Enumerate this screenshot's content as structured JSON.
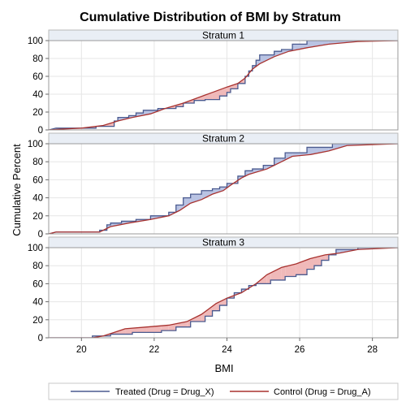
{
  "chart_data": {
    "type": "line",
    "title": "Cumulative Distribution of BMI by Stratum",
    "xlabel": "BMI",
    "ylabel": "Cumulative Percent",
    "xlim": [
      19.1,
      28.7
    ],
    "ylim": [
      0,
      100
    ],
    "xticks": [
      20,
      22,
      24,
      26,
      28
    ],
    "yticks": [
      0,
      20,
      40,
      60,
      80,
      100
    ],
    "grid": true,
    "legend_position": "bottom",
    "colors": {
      "treated": "#4a5a8f",
      "control": "#a8322f",
      "fill_treated_above": "#b9c3e3",
      "fill_control_above": "#f0b9b9",
      "strip_bg": "#e9eef5",
      "grid": "#e6e6e6"
    },
    "legend": {
      "treated": "Treated (Drug = Drug_X)",
      "control": "Control (Drug = Drug_A)"
    },
    "panels": [
      {
        "label": "Stratum 1",
        "series": [
          {
            "name": "Treated (Drug = Drug_X)",
            "key": "treated",
            "points": [
              [
                19.1,
                0
              ],
              [
                19.3,
                2
              ],
              [
                20.4,
                2
              ],
              [
                20.4,
                4
              ],
              [
                20.9,
                4
              ],
              [
                20.9,
                10
              ],
              [
                21.0,
                10
              ],
              [
                21.0,
                14
              ],
              [
                21.3,
                14
              ],
              [
                21.3,
                16
              ],
              [
                21.5,
                16
              ],
              [
                21.5,
                19
              ],
              [
                21.7,
                19
              ],
              [
                21.7,
                22
              ],
              [
                22.1,
                22
              ],
              [
                22.1,
                24
              ],
              [
                22.6,
                24
              ],
              [
                22.6,
                26
              ],
              [
                22.8,
                26
              ],
              [
                22.8,
                30
              ],
              [
                23.1,
                30
              ],
              [
                23.1,
                33
              ],
              [
                23.4,
                33
              ],
              [
                23.4,
                34
              ],
              [
                23.8,
                34
              ],
              [
                23.8,
                38
              ],
              [
                24.0,
                38
              ],
              [
                24.0,
                42
              ],
              [
                24.1,
                42
              ],
              [
                24.1,
                46
              ],
              [
                24.3,
                46
              ],
              [
                24.3,
                52
              ],
              [
                24.5,
                52
              ],
              [
                24.5,
                60
              ],
              [
                24.6,
                60
              ],
              [
                24.6,
                66
              ],
              [
                24.7,
                66
              ],
              [
                24.7,
                72
              ],
              [
                24.8,
                72
              ],
              [
                24.8,
                78
              ],
              [
                24.9,
                78
              ],
              [
                24.9,
                84
              ],
              [
                25.3,
                84
              ],
              [
                25.3,
                88
              ],
              [
                25.5,
                88
              ],
              [
                25.5,
                90
              ],
              [
                25.8,
                90
              ],
              [
                25.8,
                96
              ],
              [
                26.2,
                96
              ],
              [
                26.2,
                100
              ],
              [
                28.7,
                100
              ]
            ]
          },
          {
            "name": "Control (Drug = Drug_A)",
            "key": "control",
            "points": [
              [
                19.1,
                0
              ],
              [
                19.5,
                1
              ],
              [
                20.0,
                2
              ],
              [
                20.6,
                5
              ],
              [
                21.0,
                10
              ],
              [
                21.4,
                14
              ],
              [
                21.9,
                18
              ],
              [
                22.3,
                24
              ],
              [
                22.8,
                30
              ],
              [
                23.2,
                36
              ],
              [
                23.6,
                42
              ],
              [
                24.0,
                48
              ],
              [
                24.3,
                52
              ],
              [
                24.5,
                58
              ],
              [
                24.7,
                68
              ],
              [
                24.9,
                74
              ],
              [
                25.3,
                82
              ],
              [
                25.7,
                88
              ],
              [
                26.2,
                92
              ],
              [
                26.8,
                96
              ],
              [
                27.6,
                99
              ],
              [
                28.7,
                100
              ]
            ]
          }
        ]
      },
      {
        "label": "Stratum 2",
        "series": [
          {
            "name": "Treated (Drug = Drug_X)",
            "key": "treated",
            "points": [
              [
                19.1,
                0
              ],
              [
                19.3,
                2
              ],
              [
                20.5,
                2
              ],
              [
                20.5,
                4
              ],
              [
                20.7,
                4
              ],
              [
                20.7,
                10
              ],
              [
                20.8,
                10
              ],
              [
                20.8,
                12
              ],
              [
                21.1,
                12
              ],
              [
                21.1,
                14
              ],
              [
                21.5,
                14
              ],
              [
                21.5,
                16
              ],
              [
                21.9,
                16
              ],
              [
                21.9,
                20
              ],
              [
                22.4,
                20
              ],
              [
                22.4,
                24
              ],
              [
                22.6,
                24
              ],
              [
                22.6,
                32
              ],
              [
                22.8,
                32
              ],
              [
                22.8,
                40
              ],
              [
                23.0,
                40
              ],
              [
                23.0,
                44
              ],
              [
                23.3,
                44
              ],
              [
                23.3,
                48
              ],
              [
                23.6,
                48
              ],
              [
                23.6,
                50
              ],
              [
                23.8,
                50
              ],
              [
                23.8,
                52
              ],
              [
                24.0,
                52
              ],
              [
                24.0,
                56
              ],
              [
                24.3,
                56
              ],
              [
                24.3,
                64
              ],
              [
                24.5,
                64
              ],
              [
                24.5,
                70
              ],
              [
                24.7,
                70
              ],
              [
                24.7,
                72
              ],
              [
                25.0,
                72
              ],
              [
                25.0,
                76
              ],
              [
                25.3,
                76
              ],
              [
                25.3,
                84
              ],
              [
                25.6,
                84
              ],
              [
                25.6,
                90
              ],
              [
                26.2,
                90
              ],
              [
                26.2,
                96
              ],
              [
                26.9,
                96
              ],
              [
                26.9,
                100
              ],
              [
                28.7,
                100
              ]
            ]
          },
          {
            "name": "Control (Drug = Drug_A)",
            "key": "control",
            "points": [
              [
                19.1,
                0
              ],
              [
                19.3,
                2
              ],
              [
                20.5,
                2
              ],
              [
                20.6,
                4
              ],
              [
                20.8,
                8
              ],
              [
                21.3,
                12
              ],
              [
                21.9,
                16
              ],
              [
                22.4,
                20
              ],
              [
                22.7,
                26
              ],
              [
                23.0,
                34
              ],
              [
                23.3,
                38
              ],
              [
                23.6,
                44
              ],
              [
                23.9,
                48
              ],
              [
                24.1,
                54
              ],
              [
                24.4,
                62
              ],
              [
                24.6,
                66
              ],
              [
                25.1,
                72
              ],
              [
                25.5,
                80
              ],
              [
                25.8,
                86
              ],
              [
                26.3,
                88
              ],
              [
                26.8,
                92
              ],
              [
                27.3,
                98
              ],
              [
                28.7,
                100
              ]
            ]
          }
        ]
      },
      {
        "label": "Stratum 3",
        "series": [
          {
            "name": "Treated (Drug = Drug_X)",
            "key": "treated",
            "points": [
              [
                19.1,
                0
              ],
              [
                20.3,
                0
              ],
              [
                20.3,
                2
              ],
              [
                20.8,
                2
              ],
              [
                20.8,
                4
              ],
              [
                21.4,
                4
              ],
              [
                21.4,
                6
              ],
              [
                22.2,
                6
              ],
              [
                22.2,
                8
              ],
              [
                22.6,
                8
              ],
              [
                22.6,
                12
              ],
              [
                23.0,
                12
              ],
              [
                23.0,
                18
              ],
              [
                23.4,
                18
              ],
              [
                23.4,
                24
              ],
              [
                23.6,
                24
              ],
              [
                23.6,
                30
              ],
              [
                23.8,
                30
              ],
              [
                23.8,
                36
              ],
              [
                24.0,
                36
              ],
              [
                24.0,
                44
              ],
              [
                24.2,
                44
              ],
              [
                24.2,
                50
              ],
              [
                24.4,
                50
              ],
              [
                24.4,
                54
              ],
              [
                24.6,
                54
              ],
              [
                24.6,
                58
              ],
              [
                24.8,
                58
              ],
              [
                24.8,
                60
              ],
              [
                25.2,
                60
              ],
              [
                25.2,
                64
              ],
              [
                25.6,
                64
              ],
              [
                25.6,
                68
              ],
              [
                25.9,
                68
              ],
              [
                25.9,
                70
              ],
              [
                26.2,
                70
              ],
              [
                26.2,
                76
              ],
              [
                26.4,
                76
              ],
              [
                26.4,
                80
              ],
              [
                26.6,
                80
              ],
              [
                26.6,
                86
              ],
              [
                26.8,
                86
              ],
              [
                26.8,
                92
              ],
              [
                27.0,
                92
              ],
              [
                27.0,
                98
              ],
              [
                27.6,
                98
              ],
              [
                27.6,
                100
              ],
              [
                28.7,
                100
              ]
            ]
          },
          {
            "name": "Control (Drug = Drug_A)",
            "key": "control",
            "points": [
              [
                19.1,
                0
              ],
              [
                20.3,
                0
              ],
              [
                20.6,
                2
              ],
              [
                20.9,
                6
              ],
              [
                21.2,
                10
              ],
              [
                21.8,
                12
              ],
              [
                22.4,
                14
              ],
              [
                22.9,
                18
              ],
              [
                23.3,
                26
              ],
              [
                23.7,
                38
              ],
              [
                24.0,
                44
              ],
              [
                24.4,
                50
              ],
              [
                24.8,
                60
              ],
              [
                25.1,
                70
              ],
              [
                25.5,
                78
              ],
              [
                25.9,
                82
              ],
              [
                26.3,
                88
              ],
              [
                26.7,
                92
              ],
              [
                27.1,
                94
              ],
              [
                27.6,
                98
              ],
              [
                28.7,
                100
              ]
            ]
          }
        ]
      }
    ]
  }
}
